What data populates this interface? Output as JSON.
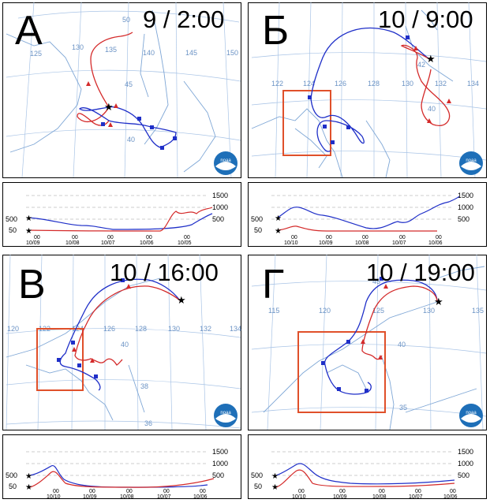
{
  "colors": {
    "backward_trajectory": "#1f2fc8",
    "forward_trajectory": "#d42a2a",
    "study_box": "#e0502a",
    "grid": "#a9c4e6",
    "coast": "#7fa7d6",
    "noaa_blue": "#1e6fb8"
  },
  "icons": {
    "source_marker": "star-icon",
    "logo": "noaa-logo"
  },
  "logo_text": "noaa",
  "height_axis_labels": [
    "1500",
    "1000",
    "500"
  ],
  "panels": [
    {
      "letter": "А",
      "time": "9 / 2:00",
      "lon_labels": [
        "125",
        "130",
        "135",
        "140",
        "145",
        "150"
      ],
      "lat_labels": [
        "50",
        "45",
        "40"
      ],
      "left_height_labels": [
        "500",
        "50"
      ],
      "date_hour": "00",
      "date_labels": [
        "10/09",
        "10/08",
        "10/07",
        "10/06",
        "10/05"
      ],
      "has_box": false
    },
    {
      "letter": "Б",
      "time": "10 / 9:00",
      "lon_labels": [
        "122",
        "124",
        "126",
        "128",
        "130",
        "132",
        "134"
      ],
      "lat_labels": [
        "42",
        "40"
      ],
      "left_height_labels": [
        "500",
        "50"
      ],
      "date_hour": "00",
      "date_labels": [
        "10/10",
        "10/09",
        "10/08",
        "10/07",
        "10/06"
      ],
      "has_box": true
    },
    {
      "letter": "В",
      "time": "10 / 16:00",
      "lon_labels": [
        "120",
        "122",
        "124",
        "126",
        "128",
        "130",
        "132",
        "134"
      ],
      "lat_labels": [
        "40",
        "38",
        "36"
      ],
      "left_height_labels": [
        "500",
        "50"
      ],
      "date_hour": "00",
      "date_labels": [
        "10/10",
        "10/09",
        "10/08",
        "10/07",
        "10/06"
      ],
      "has_box": true
    },
    {
      "letter": "Г",
      "time": "10 / 19:00",
      "lon_labels": [
        "115",
        "120",
        "125",
        "130",
        "135"
      ],
      "lat_labels": [
        "45",
        "40",
        "35"
      ],
      "left_height_labels": [
        "500",
        "50"
      ],
      "date_hour": "00",
      "date_labels": [
        "10/10",
        "10/09",
        "10/08",
        "10/07",
        "10/06"
      ],
      "has_box": true
    }
  ]
}
